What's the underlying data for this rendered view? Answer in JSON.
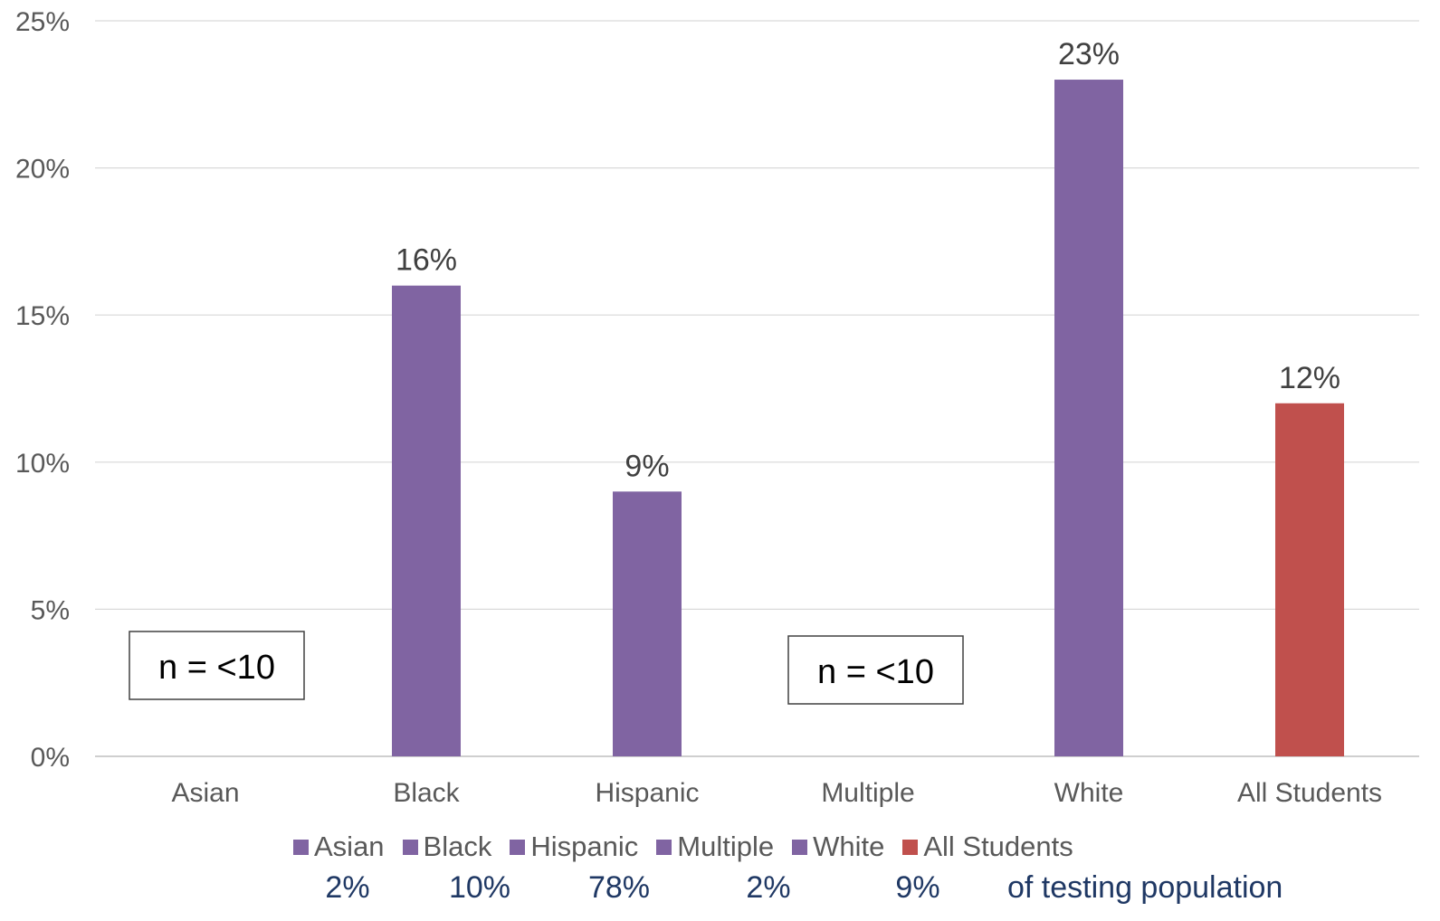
{
  "chart_data": {
    "type": "bar",
    "categories": [
      "Asian",
      "Black",
      "Hispanic",
      "Multiple",
      "White",
      "All Students"
    ],
    "values": [
      null,
      16,
      9,
      null,
      23,
      12
    ],
    "data_labels": [
      "",
      "16%",
      "9%",
      "",
      "23%",
      "12%"
    ],
    "ylim": [
      0,
      25
    ],
    "yticks": [
      0,
      5,
      10,
      15,
      20,
      25
    ],
    "ytick_labels": [
      "0%",
      "5%",
      "10%",
      "15%",
      "20%",
      "25%"
    ],
    "grid": true,
    "bar_colors": [
      "#8064A2",
      "#8064A2",
      "#8064A2",
      "#8064A2",
      "#8064A2",
      "#C0504D"
    ],
    "annotations": [
      {
        "category": "Asian",
        "text": "n = <10"
      },
      {
        "category": "Multiple",
        "text": "n = <10"
      }
    ],
    "legend": {
      "placement": "bottom",
      "entries": [
        {
          "name": "Asian",
          "color": "#8064A2"
        },
        {
          "name": "Black",
          "color": "#8064A2"
        },
        {
          "name": "Hispanic",
          "color": "#8064A2"
        },
        {
          "name": "Multiple",
          "color": "#8064A2"
        },
        {
          "name": "White",
          "color": "#8064A2"
        },
        {
          "name": "All Students",
          "color": "#C0504D"
        }
      ]
    },
    "population_shares": {
      "values": [
        "2%",
        "10%",
        "78%",
        "2%",
        "9%"
      ],
      "suffix": "of testing population"
    }
  }
}
